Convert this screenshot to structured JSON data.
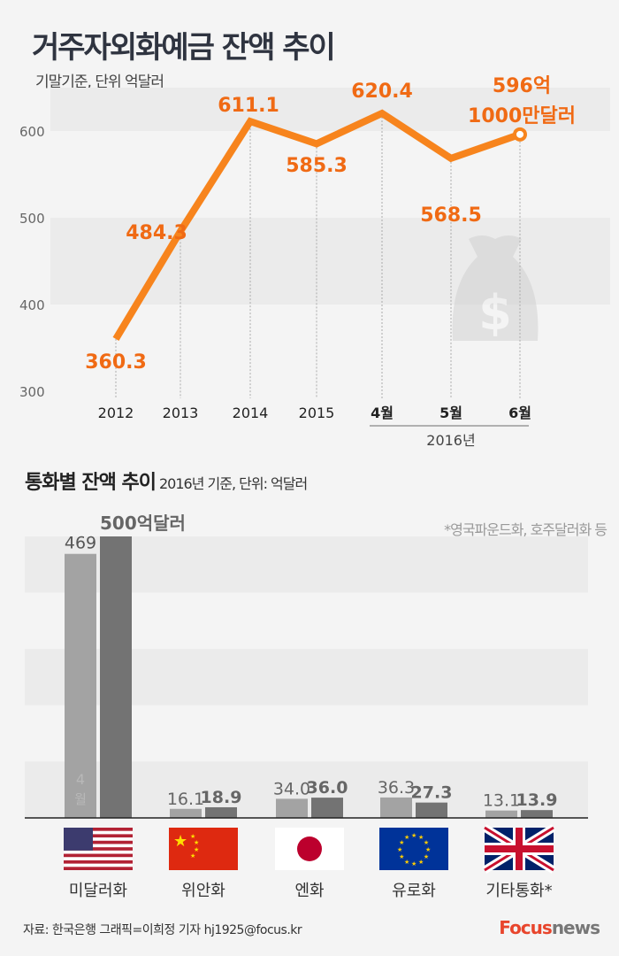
{
  "header": {
    "title": "거주자외화예금 잔액 추이",
    "subtitle": "기말기준, 단위 억달러"
  },
  "chart_data": [
    {
      "type": "line",
      "title": "거주자외화예금 잔액 추이",
      "subtitle": "기말기준, 단위 억달러",
      "categories": [
        "2012",
        "2013",
        "2014",
        "2015",
        "4월",
        "5월",
        "6월"
      ],
      "group_label": "2016년",
      "values": [
        360.3,
        484.3,
        611.1,
        585.3,
        620.4,
        568.5,
        596.1
      ],
      "data_labels": [
        "360.3",
        "484.3",
        "611.1",
        "585.3",
        "620.4",
        "568.5",
        "596억\n1000만달러"
      ],
      "last_label_lines": [
        "596억",
        "1000만달러"
      ],
      "y_ticks": [
        300,
        400,
        500,
        600
      ],
      "ylim": [
        300,
        650
      ],
      "line_color": "#f7841d",
      "label_color": "#f06a14"
    },
    {
      "type": "bar",
      "title": "통화별 잔액 추이",
      "subtitle": "2016년 기준, 단위: 억달러",
      "note": "*영국파운드화, 호주달러화 등",
      "categories": [
        "미달러화",
        "위안화",
        "엔화",
        "유로화",
        "기타통화*"
      ],
      "flags": [
        "us-flag",
        "china-flag",
        "japan-flag",
        "eu-flag",
        "uk-flag"
      ],
      "series": [
        {
          "name": "4월",
          "values": [
            469,
            16.1,
            34.0,
            36.3,
            13.1
          ],
          "labels": [
            "469",
            "16.1",
            "34.0",
            "36.3",
            "13.1"
          ],
          "color": "#a3a3a3"
        },
        {
          "values": [
            500,
            18.9,
            36.0,
            27.3,
            13.9
          ],
          "labels": [
            "500억달러",
            "18.9",
            "36.0",
            "27.3",
            "13.9"
          ],
          "color": "#737373"
        }
      ],
      "ylim": [
        0,
        500
      ]
    }
  ],
  "footer": {
    "source": "자료: 한국은행   그래픽=이희정 기자 hj1925@focus.kr",
    "logo_a": "Focus",
    "logo_b": "news"
  }
}
